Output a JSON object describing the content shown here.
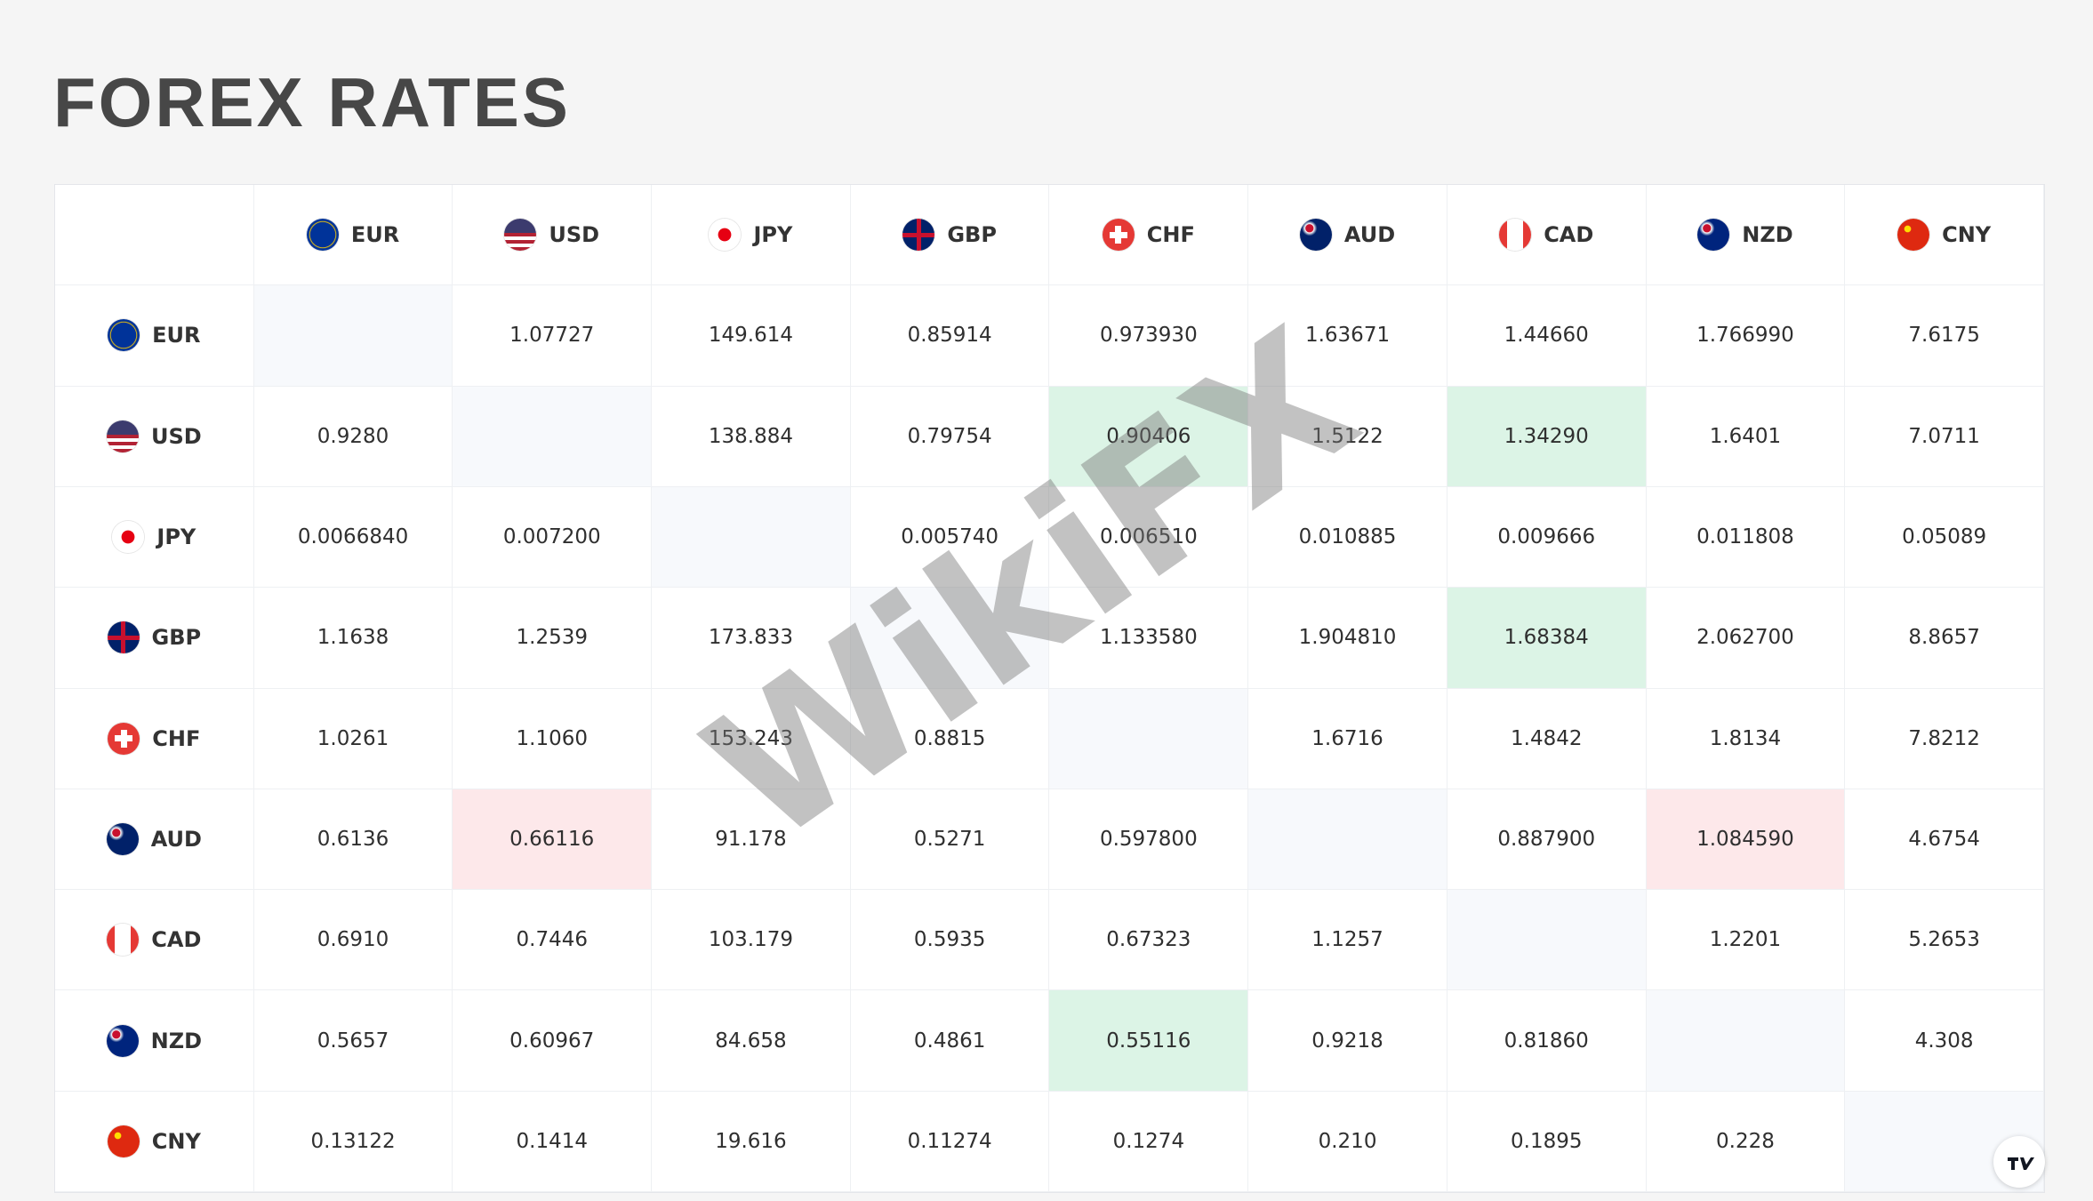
{
  "header": {
    "title": "FOREX RATES"
  },
  "table": {
    "columns": [
      "EUR",
      "USD",
      "JPY",
      "GBP",
      "CHF",
      "AUD",
      "CAD",
      "NZD",
      "CNY"
    ],
    "rows": [
      {
        "label": "EUR",
        "cells": [
          null,
          "1.07727",
          "149.614",
          "0.85914",
          "0.973930",
          "1.63671",
          "1.44660",
          "1.766990",
          "7.6175"
        ]
      },
      {
        "label": "USD",
        "cells": [
          "0.9280",
          null,
          "138.884",
          "0.79754",
          "0.90406",
          "1.5122",
          "1.34290",
          "1.6401",
          "7.0711"
        ]
      },
      {
        "label": "JPY",
        "cells": [
          "0.0066840",
          "0.007200",
          null,
          "0.005740",
          "0.006510",
          "0.010885",
          "0.009666",
          "0.011808",
          "0.05089"
        ]
      },
      {
        "label": "GBP",
        "cells": [
          "1.1638",
          "1.2539",
          "173.833",
          null,
          "1.133580",
          "1.904810",
          "1.68384",
          "2.062700",
          "8.8657"
        ]
      },
      {
        "label": "CHF",
        "cells": [
          "1.0261",
          "1.1060",
          "153.243",
          "0.8815",
          null,
          "1.6716",
          "1.4842",
          "1.8134",
          "7.8212"
        ]
      },
      {
        "label": "AUD",
        "cells": [
          "0.6136",
          "0.66116",
          "91.178",
          "0.5271",
          "0.597800",
          null,
          "0.887900",
          "1.084590",
          "4.6754"
        ]
      },
      {
        "label": "CAD",
        "cells": [
          "0.6910",
          "0.7446",
          "103.179",
          "0.5935",
          "0.67323",
          "1.1257",
          null,
          "1.2201",
          "5.2653"
        ]
      },
      {
        "label": "NZD",
        "cells": [
          "0.5657",
          "0.60967",
          "84.658",
          "0.4861",
          "0.55116",
          "0.9218",
          "0.81860",
          null,
          "4.308"
        ]
      },
      {
        "label": "CNY",
        "cells": [
          "0.13122",
          "0.1414",
          "19.616",
          "0.11274",
          "0.1274",
          "0.210",
          "0.1895",
          "0.228",
          null
        ]
      }
    ],
    "cell_colors": {
      "green": [
        [
          1,
          4
        ],
        [
          1,
          6
        ],
        [
          3,
          6
        ],
        [
          7,
          4
        ]
      ],
      "red": [
        [
          5,
          1
        ],
        [
          5,
          7
        ]
      ]
    }
  },
  "watermark": "WikiFX"
}
